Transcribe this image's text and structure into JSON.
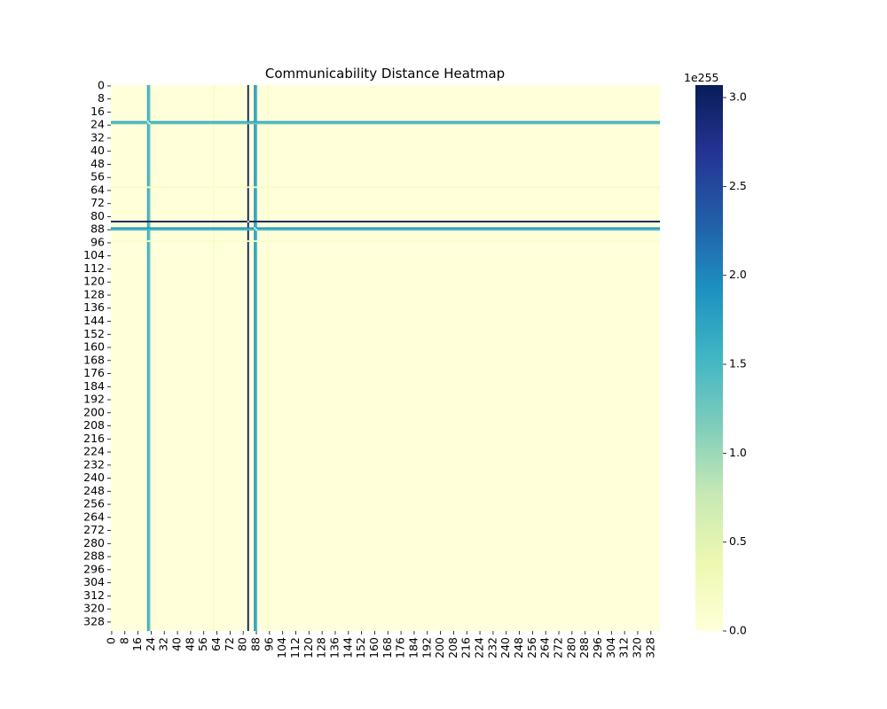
{
  "chart_data": {
    "type": "heatmap",
    "title": "Communicability Distance Heatmap",
    "matrix_size": 334,
    "x_tick_labels": [
      "0",
      "8",
      "16",
      "24",
      "32",
      "40",
      "48",
      "56",
      "64",
      "72",
      "80",
      "88",
      "96",
      "104",
      "112",
      "120",
      "128",
      "136",
      "144",
      "152",
      "160",
      "168",
      "176",
      "184",
      "192",
      "200",
      "208",
      "216",
      "224",
      "232",
      "240",
      "248",
      "256",
      "264",
      "272",
      "280",
      "288",
      "296",
      "304",
      "312",
      "320",
      "328"
    ],
    "y_tick_labels": [
      "0",
      "8",
      "16",
      "24",
      "32",
      "40",
      "48",
      "56",
      "64",
      "72",
      "80",
      "88",
      "96",
      "104",
      "112",
      "120",
      "128",
      "136",
      "144",
      "152",
      "160",
      "168",
      "176",
      "184",
      "192",
      "200",
      "208",
      "216",
      "224",
      "232",
      "240",
      "248",
      "256",
      "264",
      "272",
      "280",
      "288",
      "296",
      "304",
      "312",
      "320",
      "328"
    ],
    "background_value": 0.0,
    "highlighted_indices": [
      {
        "index": 22,
        "value": 1.7
      },
      {
        "index": 23,
        "value": 1.3
      },
      {
        "index": 62,
        "value": 0.15
      },
      {
        "index": 83,
        "value": 3.05
      },
      {
        "index": 87,
        "value": 1.9
      },
      {
        "index": 88,
        "value": 1.5
      },
      {
        "index": 95,
        "value": 0.12
      }
    ],
    "colorbar": {
      "colormap": "YlGnBu",
      "min": 0.0,
      "max": 3.07,
      "ticks": [
        "0.0",
        "0.5",
        "1.0",
        "1.5",
        "2.0",
        "2.5",
        "3.0"
      ],
      "tick_values": [
        0.0,
        0.5,
        1.0,
        1.5,
        2.0,
        2.5,
        3.0
      ],
      "exponent_label": "1e255"
    },
    "colors": {
      "background_cell": "#ffffd9",
      "max": "#081d58"
    }
  }
}
